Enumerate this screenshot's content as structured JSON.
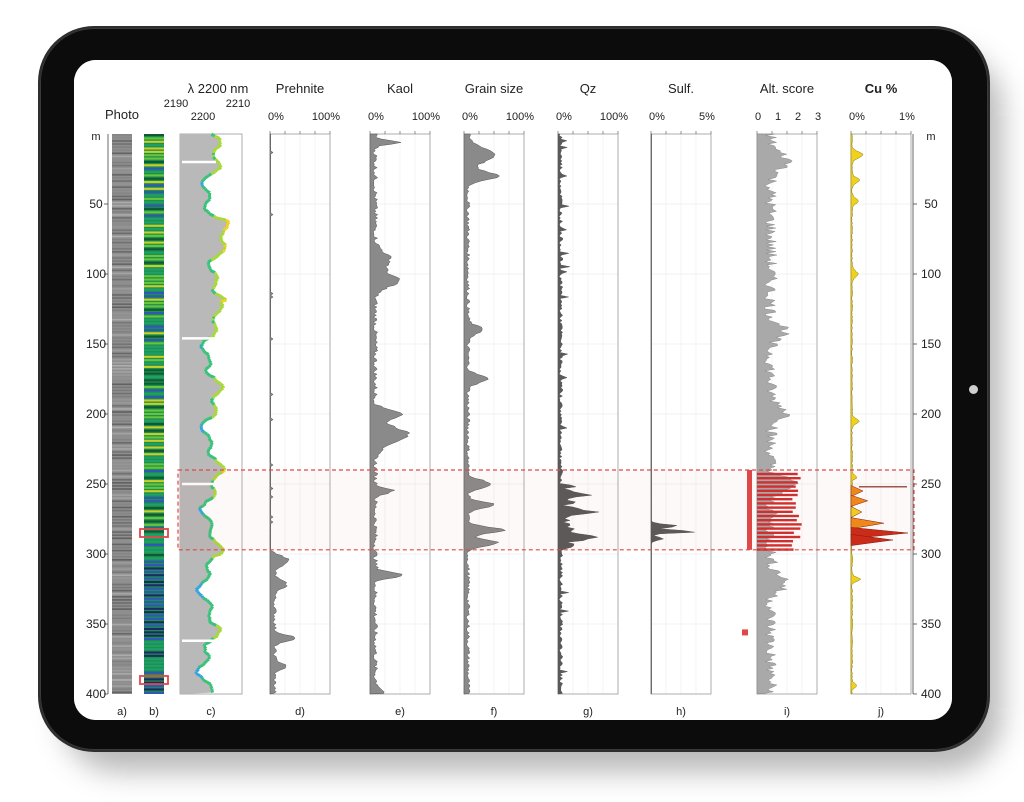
{
  "device": "tablet",
  "chart_data": {
    "type": "line",
    "depth_axis": {
      "unit_label": "m",
      "min": 0,
      "max": 400,
      "ticks": [
        50,
        100,
        150,
        200,
        250,
        300,
        350,
        400
      ]
    },
    "highlight_zone": {
      "from": 240,
      "to": 297
    },
    "highlight_color": "#e04848",
    "panels": [
      {
        "id": "a",
        "letter": "a)",
        "title": "Photo",
        "kind": "photo",
        "ticks": []
      },
      {
        "id": "b",
        "letter": "b)",
        "title": "",
        "kind": "hyperspectral",
        "ticks": [],
        "boxes": [
          285,
          390
        ],
        "colors": [
          "#1e2a66",
          "#2f57b8",
          "#1f9f6a",
          "#68c43c",
          "#c8cf2a",
          "#0f5a36"
        ]
      },
      {
        "id": "c",
        "letter": "c)",
        "title": "λ 2200 nm",
        "kind": "lambda",
        "ticks": [
          "2190",
          "2210",
          "2200"
        ],
        "xlim": [
          2190,
          2210
        ],
        "colors": [
          "#3a3fbf",
          "#35a6d8",
          "#39c27a",
          "#a8d83a",
          "#f3d11e"
        ]
      },
      {
        "id": "d",
        "letter": "d)",
        "title": "Prehnite",
        "kind": "area",
        "ticks": [
          "0%",
          "100%"
        ],
        "color": "#8a8a8a"
      },
      {
        "id": "e",
        "letter": "e)",
        "title": "Kaol",
        "kind": "area",
        "ticks": [
          "0%",
          "100%"
        ],
        "color": "#8a8a8a"
      },
      {
        "id": "f",
        "letter": "f)",
        "title": "Grain size",
        "kind": "area",
        "ticks": [
          "0%",
          "100%"
        ],
        "color": "#8a8a8a"
      },
      {
        "id": "g",
        "letter": "g)",
        "title": "Qz",
        "kind": "area",
        "ticks": [
          "0%",
          "100%"
        ],
        "color": "#5a5a5a"
      },
      {
        "id": "h",
        "letter": "h)",
        "title": "Sulf.",
        "kind": "area",
        "ticks": [
          "0%",
          "5%"
        ],
        "color": "#5a5a5a"
      },
      {
        "id": "i",
        "letter": "i)",
        "title": "Alt. score",
        "kind": "score",
        "ticks": [
          "0",
          "1",
          "2",
          "3"
        ],
        "color": "#a9a9a9",
        "highlight_fill": "#cf2e2e",
        "marker_depth": 356
      },
      {
        "id": "j",
        "letter": "j)",
        "title": "Cu %",
        "kind": "cu",
        "ticks": [
          "0%",
          "1%"
        ],
        "colors": [
          "#f0d21c",
          "#ef8a19",
          "#cc2a18"
        ]
      }
    ]
  }
}
